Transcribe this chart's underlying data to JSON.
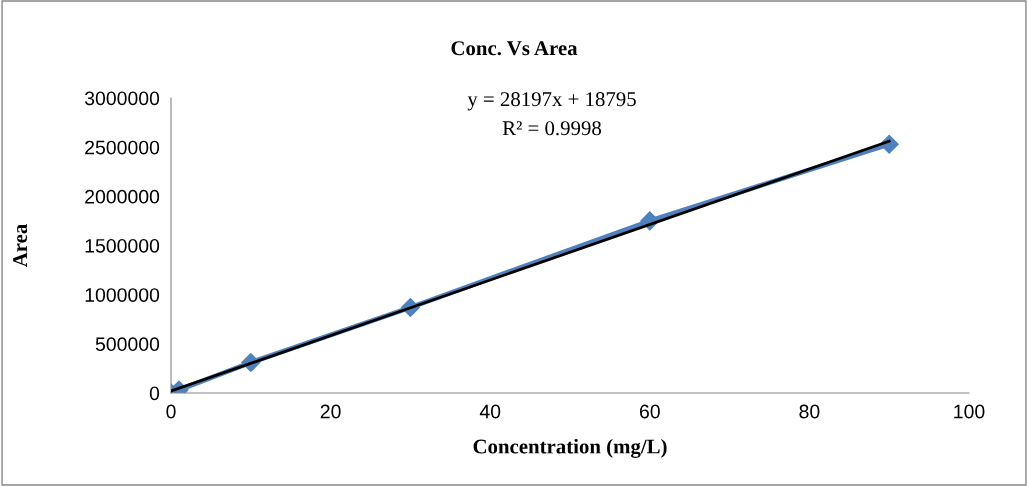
{
  "chart_data": {
    "type": "line",
    "title": "Conc. Vs Area",
    "xlabel": "Concentration (mg/L)",
    "ylabel": "Area",
    "annotations": [
      "y = 28197x + 18795",
      "R² = 0.9998"
    ],
    "xlim": [
      0,
      100
    ],
    "xticks": [
      0,
      20,
      40,
      60,
      80,
      100
    ],
    "ylim": [
      0,
      3000000
    ],
    "yticks": [
      0,
      500000,
      1000000,
      1500000,
      2000000,
      2500000,
      3000000
    ],
    "grid": false,
    "legend": false,
    "marker": "diamond",
    "series": [
      {
        "color": "#4f81bd",
        "x": [
          0,
          1,
          10,
          30,
          60,
          90
        ],
        "values": [
          0,
          30000,
          310000,
          870000,
          1750000,
          2530000
        ]
      },
      {
        "type": "line",
        "color": "#000000",
        "marker": "none",
        "x": [
          0,
          90
        ],
        "values": [
          20000,
          2560000
        ]
      }
    ]
  }
}
